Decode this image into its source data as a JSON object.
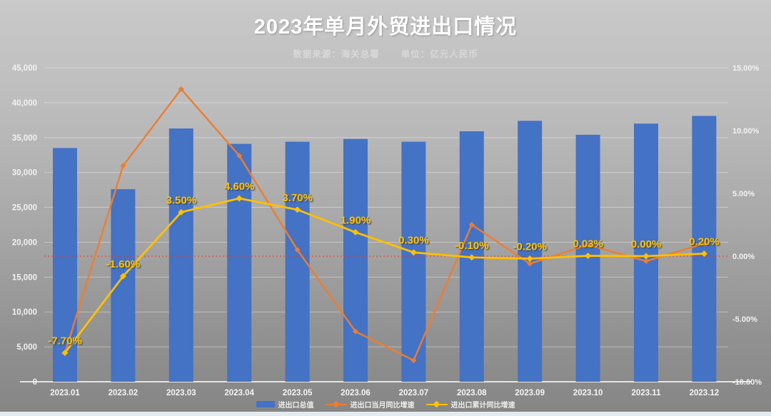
{
  "page": {
    "title": "2023年单月外贸进出口情况",
    "subtitle_source": "数据来源：海关总署",
    "subtitle_unit": "单位：亿元人民币"
  },
  "chart_data": {
    "type": "bar",
    "subtype": "combo-bar-line-dual-axis",
    "title": "2023年单月外贸进出口情况",
    "categories": [
      "2023.01",
      "2023.02",
      "2023.03",
      "2023.04",
      "2023.05",
      "2023.06",
      "2023.07",
      "2023.08",
      "2023.09",
      "2023.10",
      "2023.11",
      "2023.12"
    ],
    "series": [
      {
        "name": "进出口总值",
        "type": "bar",
        "axis": "left",
        "color": "#4472c4",
        "values": [
          33500,
          27600,
          36300,
          34100,
          34400,
          34800,
          34400,
          35900,
          37400,
          35400,
          37000,
          38100
        ]
      },
      {
        "name": "进出口当月同比增速",
        "type": "line",
        "axis": "right",
        "color": "#ed7d31",
        "values": [
          -7.7,
          7.2,
          13.3,
          8.0,
          0.5,
          -6.0,
          -8.3,
          2.5,
          -0.6,
          0.9,
          -0.4,
          1.0
        ]
      },
      {
        "name": "进出口累计同比增速",
        "type": "line",
        "axis": "right",
        "color": "#ffc000",
        "values": [
          -7.7,
          -1.6,
          3.5,
          4.6,
          3.7,
          1.9,
          0.3,
          -0.1,
          -0.2,
          0.03,
          0.0,
          0.2
        ],
        "point_labels": [
          "-7.70%",
          "-1.60%",
          "3.50%",
          "4.60%",
          "3.70%",
          "1.90%",
          "0.30%",
          "-0.10%",
          "-0.20%",
          "0.03%",
          "0.00%",
          "0.20%"
        ]
      }
    ],
    "left_axis": {
      "min": 0,
      "max": 45000,
      "step": 5000,
      "tick_labels": [
        "0",
        "5,000",
        "10,000",
        "15,000",
        "20,000",
        "25,000",
        "30,000",
        "35,000",
        "40,000",
        "45,000"
      ]
    },
    "right_axis": {
      "min": -10,
      "max": 15,
      "step": 5,
      "tick_labels": [
        "-10.00%",
        "-5.00%",
        "0.00%",
        "5.00%",
        "10.00%",
        "15.00%"
      ]
    },
    "zero_line": {
      "value": 0,
      "color": "#e8392b",
      "style": "dotted"
    },
    "grid": true,
    "legend_position": "bottom",
    "label_color": "#ffc000",
    "tick_color": "#f2f2f2"
  },
  "legend": {
    "items": [
      {
        "label": "进出口总值",
        "color": "#4472c4",
        "marker": "bar"
      },
      {
        "label": "进出口当月同比增速",
        "color": "#ed7d31",
        "marker": "line"
      },
      {
        "label": "进出口累计同比增速",
        "color": "#ffc000",
        "marker": "line"
      }
    ]
  }
}
